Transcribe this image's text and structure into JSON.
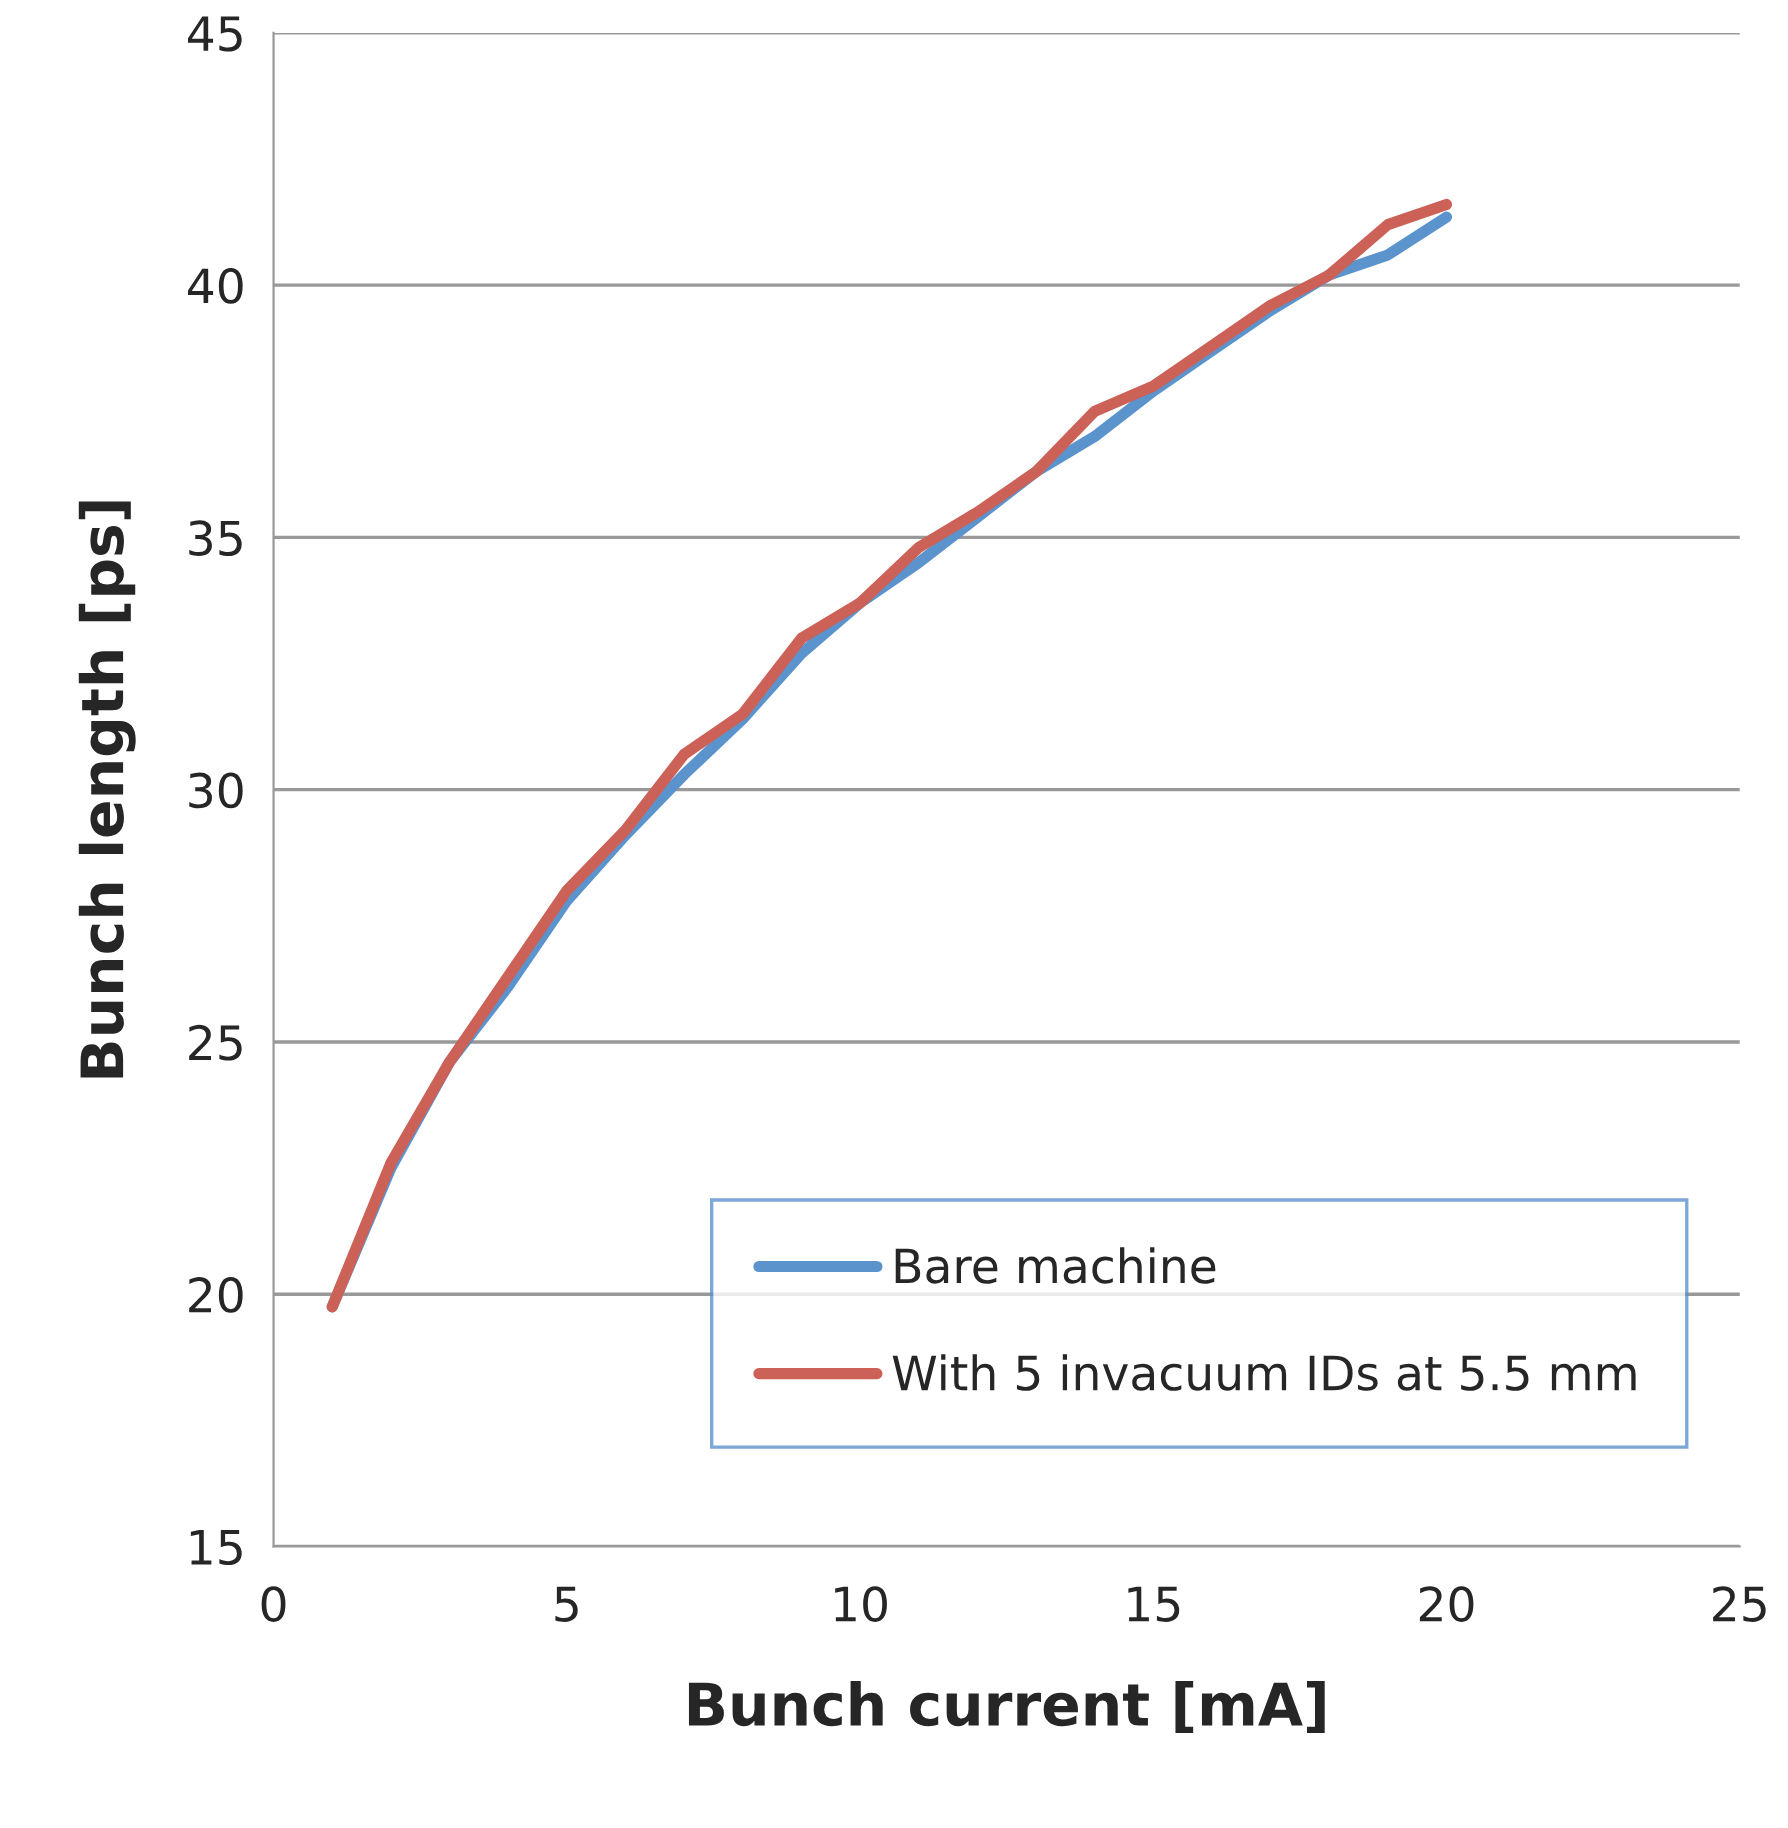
{
  "chart_data": {
    "type": "line",
    "xlabel": "Bunch current [mA]",
    "ylabel": "Bunch length [ps]",
    "x": [
      1,
      2,
      3,
      4,
      5,
      6,
      7,
      8,
      9,
      10,
      11,
      12,
      13,
      14,
      15,
      16,
      17,
      18,
      19,
      20
    ],
    "series": [
      {
        "name": "Bare machine",
        "color": "#5b93cc",
        "values": [
          19.75,
          22.5,
          24.6,
          26.1,
          27.8,
          29.1,
          30.3,
          31.4,
          32.7,
          33.7,
          34.5,
          35.4,
          36.3,
          37.0,
          37.9,
          38.7,
          39.5,
          40.2,
          40.6,
          41.35
        ]
      },
      {
        "name": "With 5 invacuum IDs at 5.5 mm",
        "color": "#cc6158",
        "values": [
          19.75,
          22.6,
          24.6,
          26.3,
          28.0,
          29.2,
          30.7,
          31.5,
          33.0,
          33.7,
          34.8,
          35.5,
          36.3,
          37.5,
          38.0,
          38.8,
          39.6,
          40.2,
          41.2,
          41.6
        ]
      }
    ],
    "xlim": [
      0,
      25
    ],
    "xticks": [
      0,
      5,
      10,
      15,
      20,
      25
    ],
    "ylim": [
      15,
      45
    ],
    "yticks": [
      15,
      20,
      25,
      30,
      35,
      40,
      45
    ],
    "grid": "y",
    "legend": "bottom right",
    "marker": "none",
    "line_style": "solid"
  }
}
